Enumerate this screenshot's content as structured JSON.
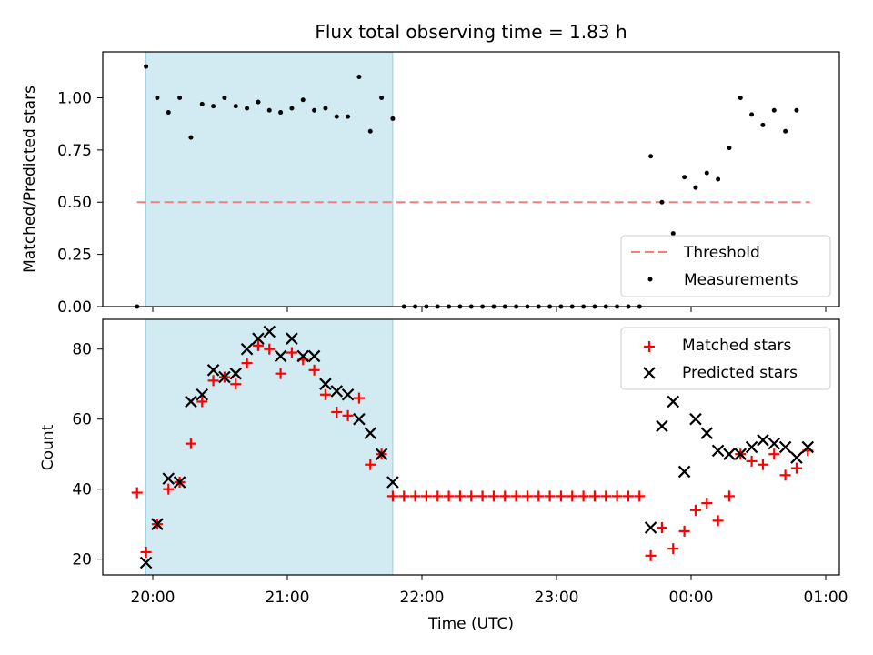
{
  "title": "Flux total observing time = 1.83 h",
  "xlabel": "Time (UTC)",
  "x_ticks": [
    "20:00",
    "21:00",
    "22:00",
    "23:00",
    "00:00",
    "01:00"
  ],
  "colors": {
    "shade": "#add8e6",
    "threshold": "#f08080",
    "matched": "#ff0000",
    "predicted": "#000000",
    "measurements": "#000000"
  },
  "chart_data": [
    {
      "type": "scatter",
      "ylabel": "Matched/Predicted stars",
      "x_unit": "minutes after 20:00 UTC",
      "ylim": [
        0,
        1.22
      ],
      "y_ticks": [
        "0.00",
        "0.25",
        "0.50",
        "0.75",
        "1.00"
      ],
      "legend_position": "lower-right",
      "shaded_span": [
        "19:57",
        "21:47"
      ],
      "threshold": {
        "name": "Threshold",
        "value": 0.5,
        "x_range": [
          "19:53",
          "00:53"
        ]
      },
      "series": [
        {
          "name": "Measurements",
          "marker": "dot",
          "x": [
            "19:53",
            "19:57",
            "20:02",
            "20:07",
            "20:12",
            "20:17",
            "20:22",
            "20:27",
            "20:32",
            "20:37",
            "20:42",
            "20:47",
            "20:52",
            "20:57",
            "21:02",
            "21:07",
            "21:12",
            "21:17",
            "21:22",
            "21:27",
            "21:32",
            "21:37",
            "21:42",
            "21:47",
            "21:52",
            "21:57",
            "22:02",
            "22:07",
            "22:12",
            "22:17",
            "22:22",
            "22:27",
            "22:32",
            "22:37",
            "22:42",
            "22:47",
            "22:52",
            "22:57",
            "23:02",
            "23:07",
            "23:12",
            "23:17",
            "23:22",
            "23:27",
            "23:32",
            "23:37",
            "23:42",
            "23:47",
            "23:52",
            "23:57",
            "00:02",
            "00:07",
            "00:12",
            "00:17",
            "00:22",
            "00:27",
            "00:32",
            "00:37",
            "00:42",
            "00:47"
          ],
          "y": [
            0.0,
            1.15,
            1.0,
            0.93,
            1.0,
            0.81,
            0.97,
            0.96,
            1.0,
            0.96,
            0.95,
            0.98,
            0.94,
            0.93,
            0.95,
            0.99,
            0.94,
            0.95,
            0.91,
            0.91,
            1.1,
            0.84,
            1.0,
            0.9,
            0.0,
            0.0,
            0.0,
            0.0,
            0.0,
            0.0,
            0.0,
            0.0,
            0.0,
            0.0,
            0.0,
            0.0,
            0.0,
            0.0,
            0.0,
            0.0,
            0.0,
            0.0,
            0.0,
            0.0,
            0.0,
            0.0,
            0.72,
            0.5,
            0.35,
            0.62,
            0.57,
            0.64,
            0.61,
            0.76,
            1.0,
            0.92,
            0.87,
            0.94,
            0.84,
            0.94
          ]
        }
      ]
    },
    {
      "type": "scatter",
      "ylabel": "Count",
      "x_unit": "minutes after 20:00 UTC",
      "ylim": [
        15.5,
        88.5
      ],
      "y_ticks": [
        "20",
        "40",
        "60",
        "80"
      ],
      "legend_position": "upper-right",
      "shaded_span": [
        "19:57",
        "21:47"
      ],
      "series": [
        {
          "name": "Matched stars",
          "marker": "plus",
          "x": [
            "19:53",
            "19:57",
            "20:02",
            "20:07",
            "20:12",
            "20:17",
            "20:22",
            "20:27",
            "20:32",
            "20:37",
            "20:42",
            "20:47",
            "20:52",
            "20:57",
            "21:02",
            "21:07",
            "21:12",
            "21:17",
            "21:22",
            "21:27",
            "21:32",
            "21:37",
            "21:42",
            "21:47",
            "21:52",
            "21:57",
            "22:02",
            "22:07",
            "22:12",
            "22:17",
            "22:22",
            "22:27",
            "22:32",
            "22:37",
            "22:42",
            "22:47",
            "22:52",
            "22:57",
            "23:02",
            "23:07",
            "23:12",
            "23:17",
            "23:22",
            "23:27",
            "23:32",
            "23:37",
            "23:42",
            "23:47",
            "23:52",
            "23:57",
            "00:02",
            "00:07",
            "00:12",
            "00:17",
            "00:22",
            "00:27",
            "00:32",
            "00:37",
            "00:42",
            "00:47",
            "00:52"
          ],
          "y": [
            39,
            22,
            30,
            40,
            42,
            53,
            65,
            71,
            72,
            70,
            76,
            81,
            80,
            73,
            79,
            77,
            74,
            67,
            62,
            61,
            66,
            47,
            50,
            38,
            38,
            38,
            38,
            38,
            38,
            38,
            38,
            38,
            38,
            38,
            38,
            38,
            38,
            38,
            38,
            38,
            38,
            38,
            38,
            38,
            38,
            38,
            21,
            29,
            23,
            28,
            34,
            36,
            31,
            38,
            50,
            48,
            47,
            50,
            44,
            46,
            51
          ]
        },
        {
          "name": "Predicted stars",
          "marker": "x",
          "x": [
            "19:57",
            "20:02",
            "20:07",
            "20:12",
            "20:17",
            "20:22",
            "20:27",
            "20:32",
            "20:37",
            "20:42",
            "20:47",
            "20:52",
            "20:57",
            "21:02",
            "21:07",
            "21:12",
            "21:17",
            "21:22",
            "21:27",
            "21:32",
            "21:37",
            "21:42",
            "21:47",
            "23:42",
            "23:47",
            "23:52",
            "23:57",
            "00:02",
            "00:07",
            "00:12",
            "00:17",
            "00:22",
            "00:27",
            "00:32",
            "00:37",
            "00:42",
            "00:47",
            "00:52"
          ],
          "y": [
            19,
            30,
            43,
            42,
            65,
            67,
            74,
            72,
            73,
            80,
            83,
            85,
            78,
            83,
            78,
            78,
            70,
            68,
            67,
            60,
            56,
            50,
            42,
            29,
            58,
            65,
            45,
            60,
            56,
            51,
            50,
            50,
            52,
            54,
            53,
            52,
            49,
            52
          ]
        }
      ]
    }
  ]
}
